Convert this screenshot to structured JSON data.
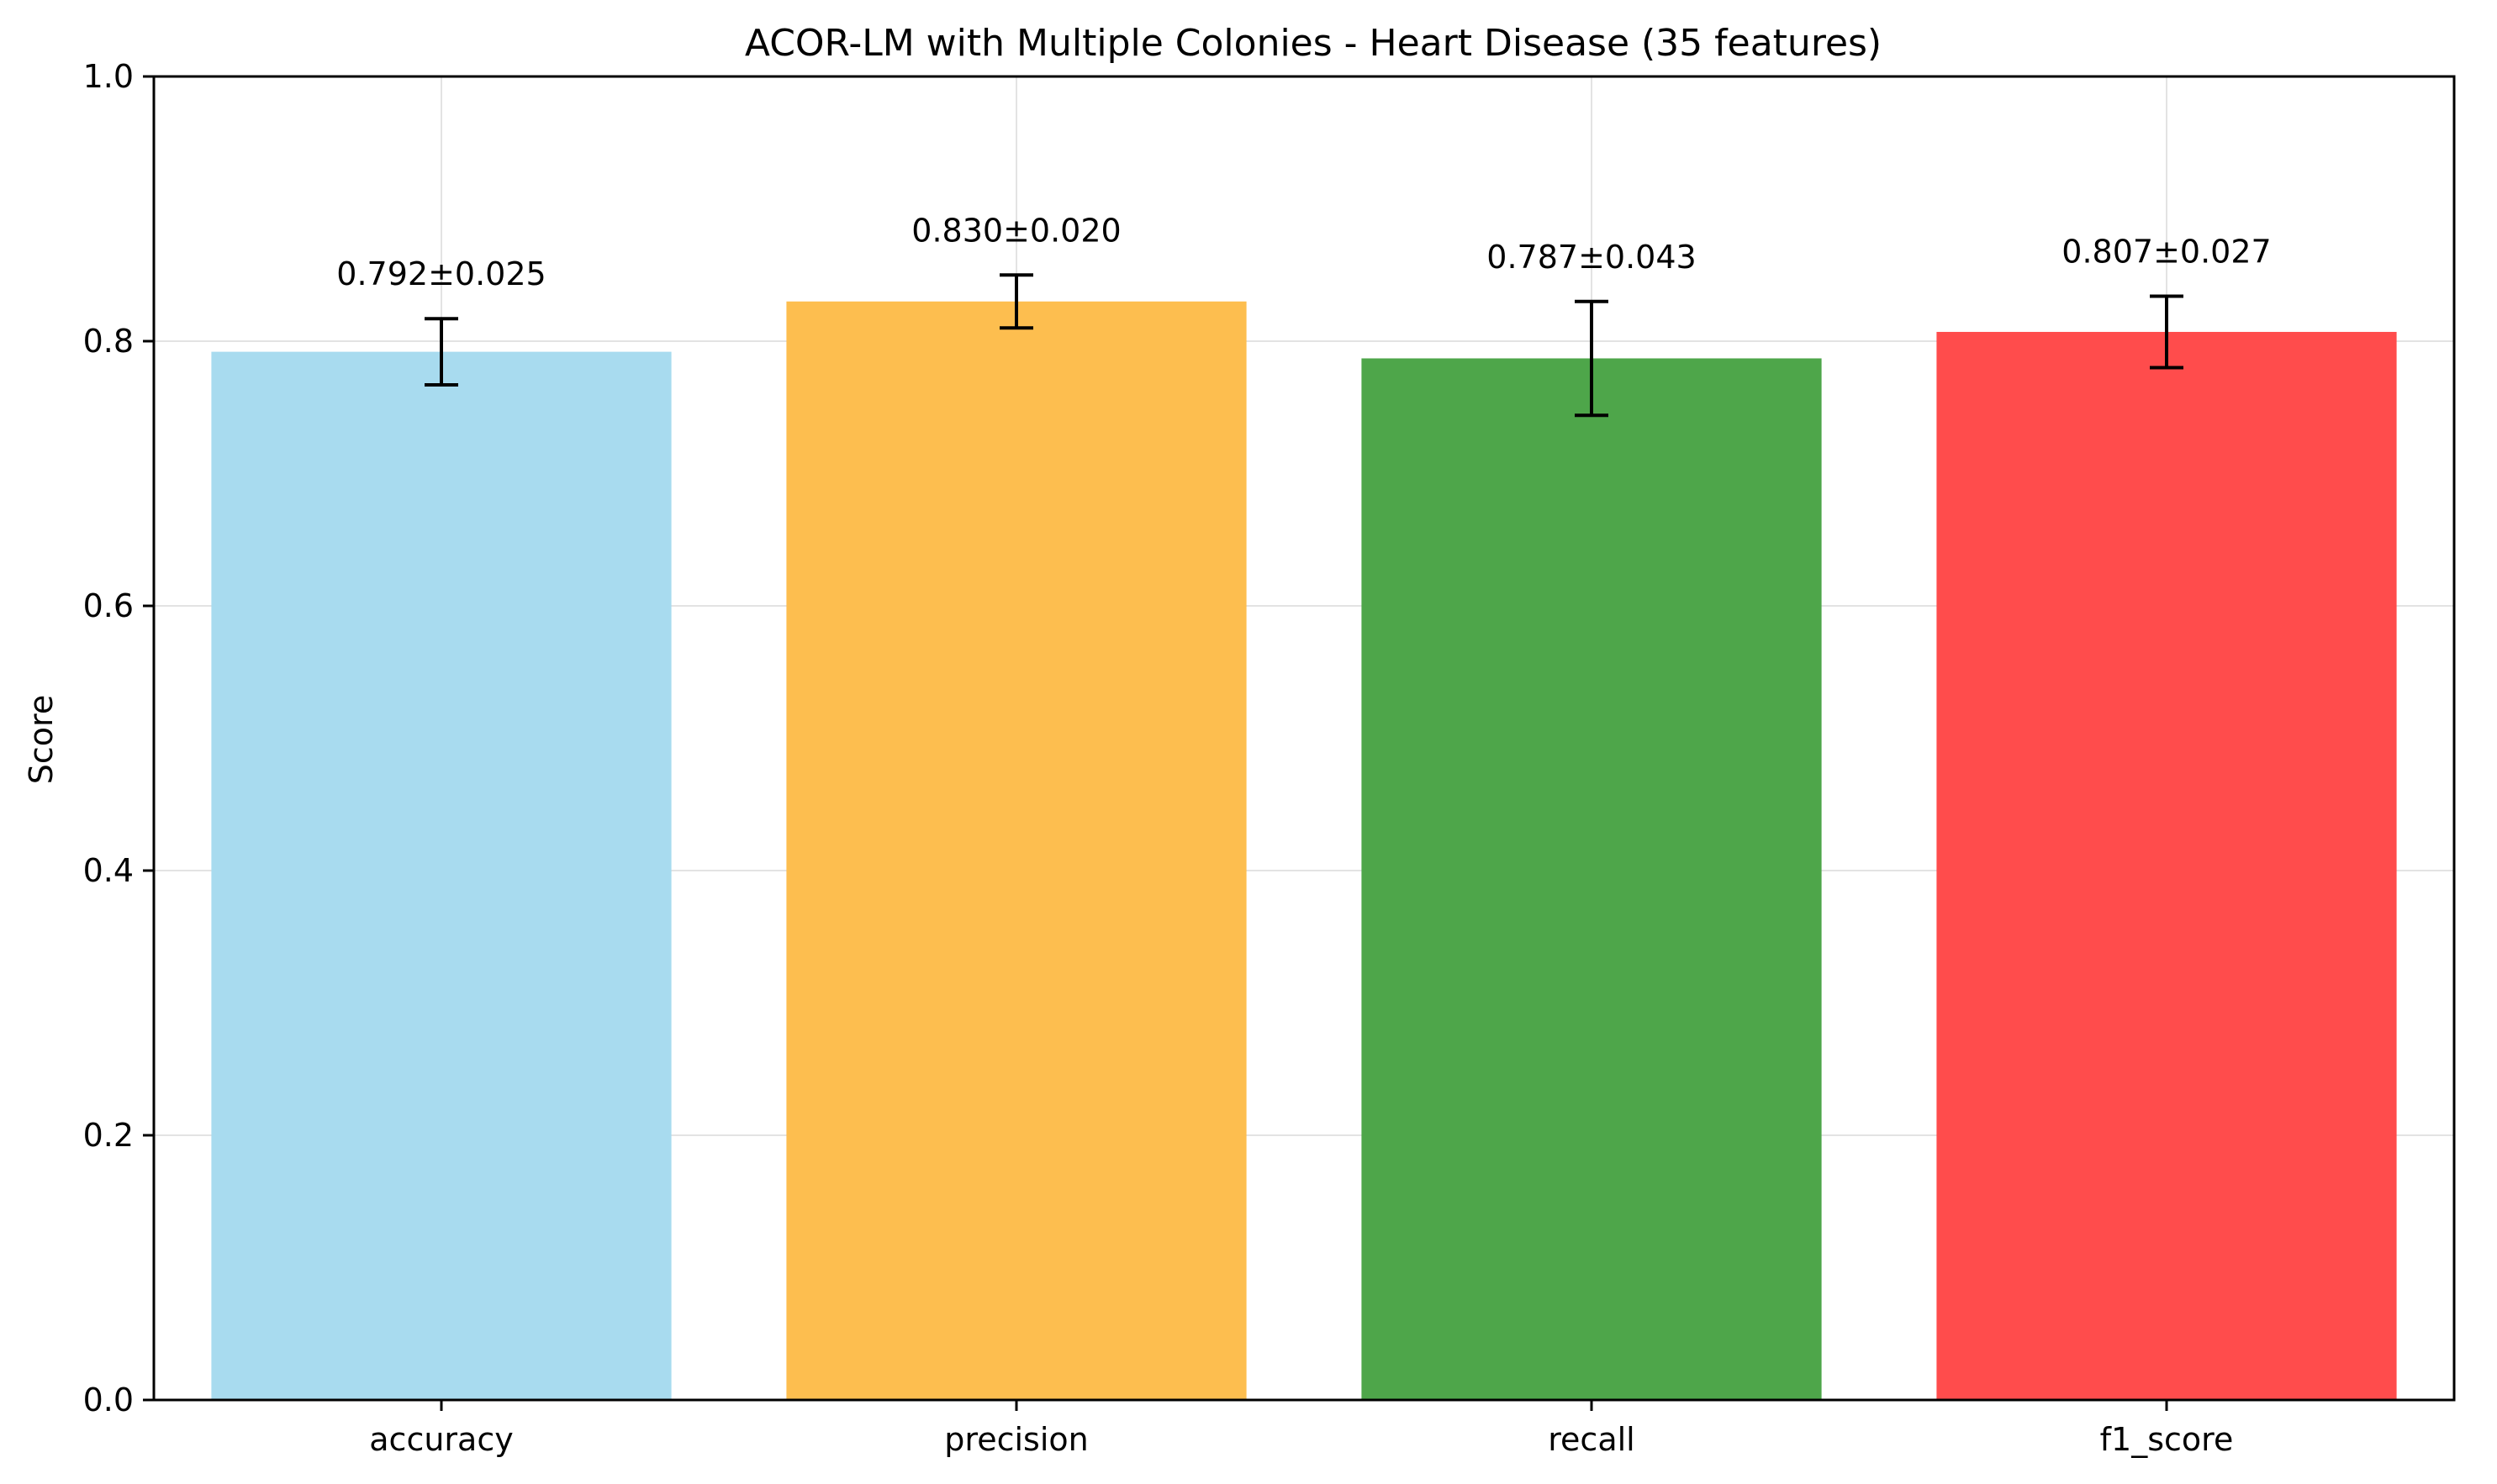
{
  "chart_data": {
    "type": "bar",
    "title": "ACOR-LM with Multiple Colonies - Heart Disease (35 features)",
    "xlabel": "",
    "ylabel": "Score",
    "ylim": [
      0,
      1.0
    ],
    "yticks": [
      "0.0",
      "0.2",
      "0.4",
      "0.6",
      "0.8",
      "1.0"
    ],
    "ytick_values": [
      0,
      0.2,
      0.4,
      0.6,
      0.8,
      1.0
    ],
    "grid": true,
    "categories": [
      "accuracy",
      "precision",
      "recall",
      "f1_score"
    ],
    "values": [
      0.792,
      0.83,
      0.787,
      0.807
    ],
    "errors": [
      0.025,
      0.02,
      0.043,
      0.027
    ],
    "data_labels": [
      "0.792±0.025",
      "0.830±0.020",
      "0.787±0.043",
      "0.807±0.027"
    ],
    "colors": [
      "#a8dbef",
      "#fdbe4f",
      "#4ea64a",
      "#ff4c4c"
    ]
  }
}
